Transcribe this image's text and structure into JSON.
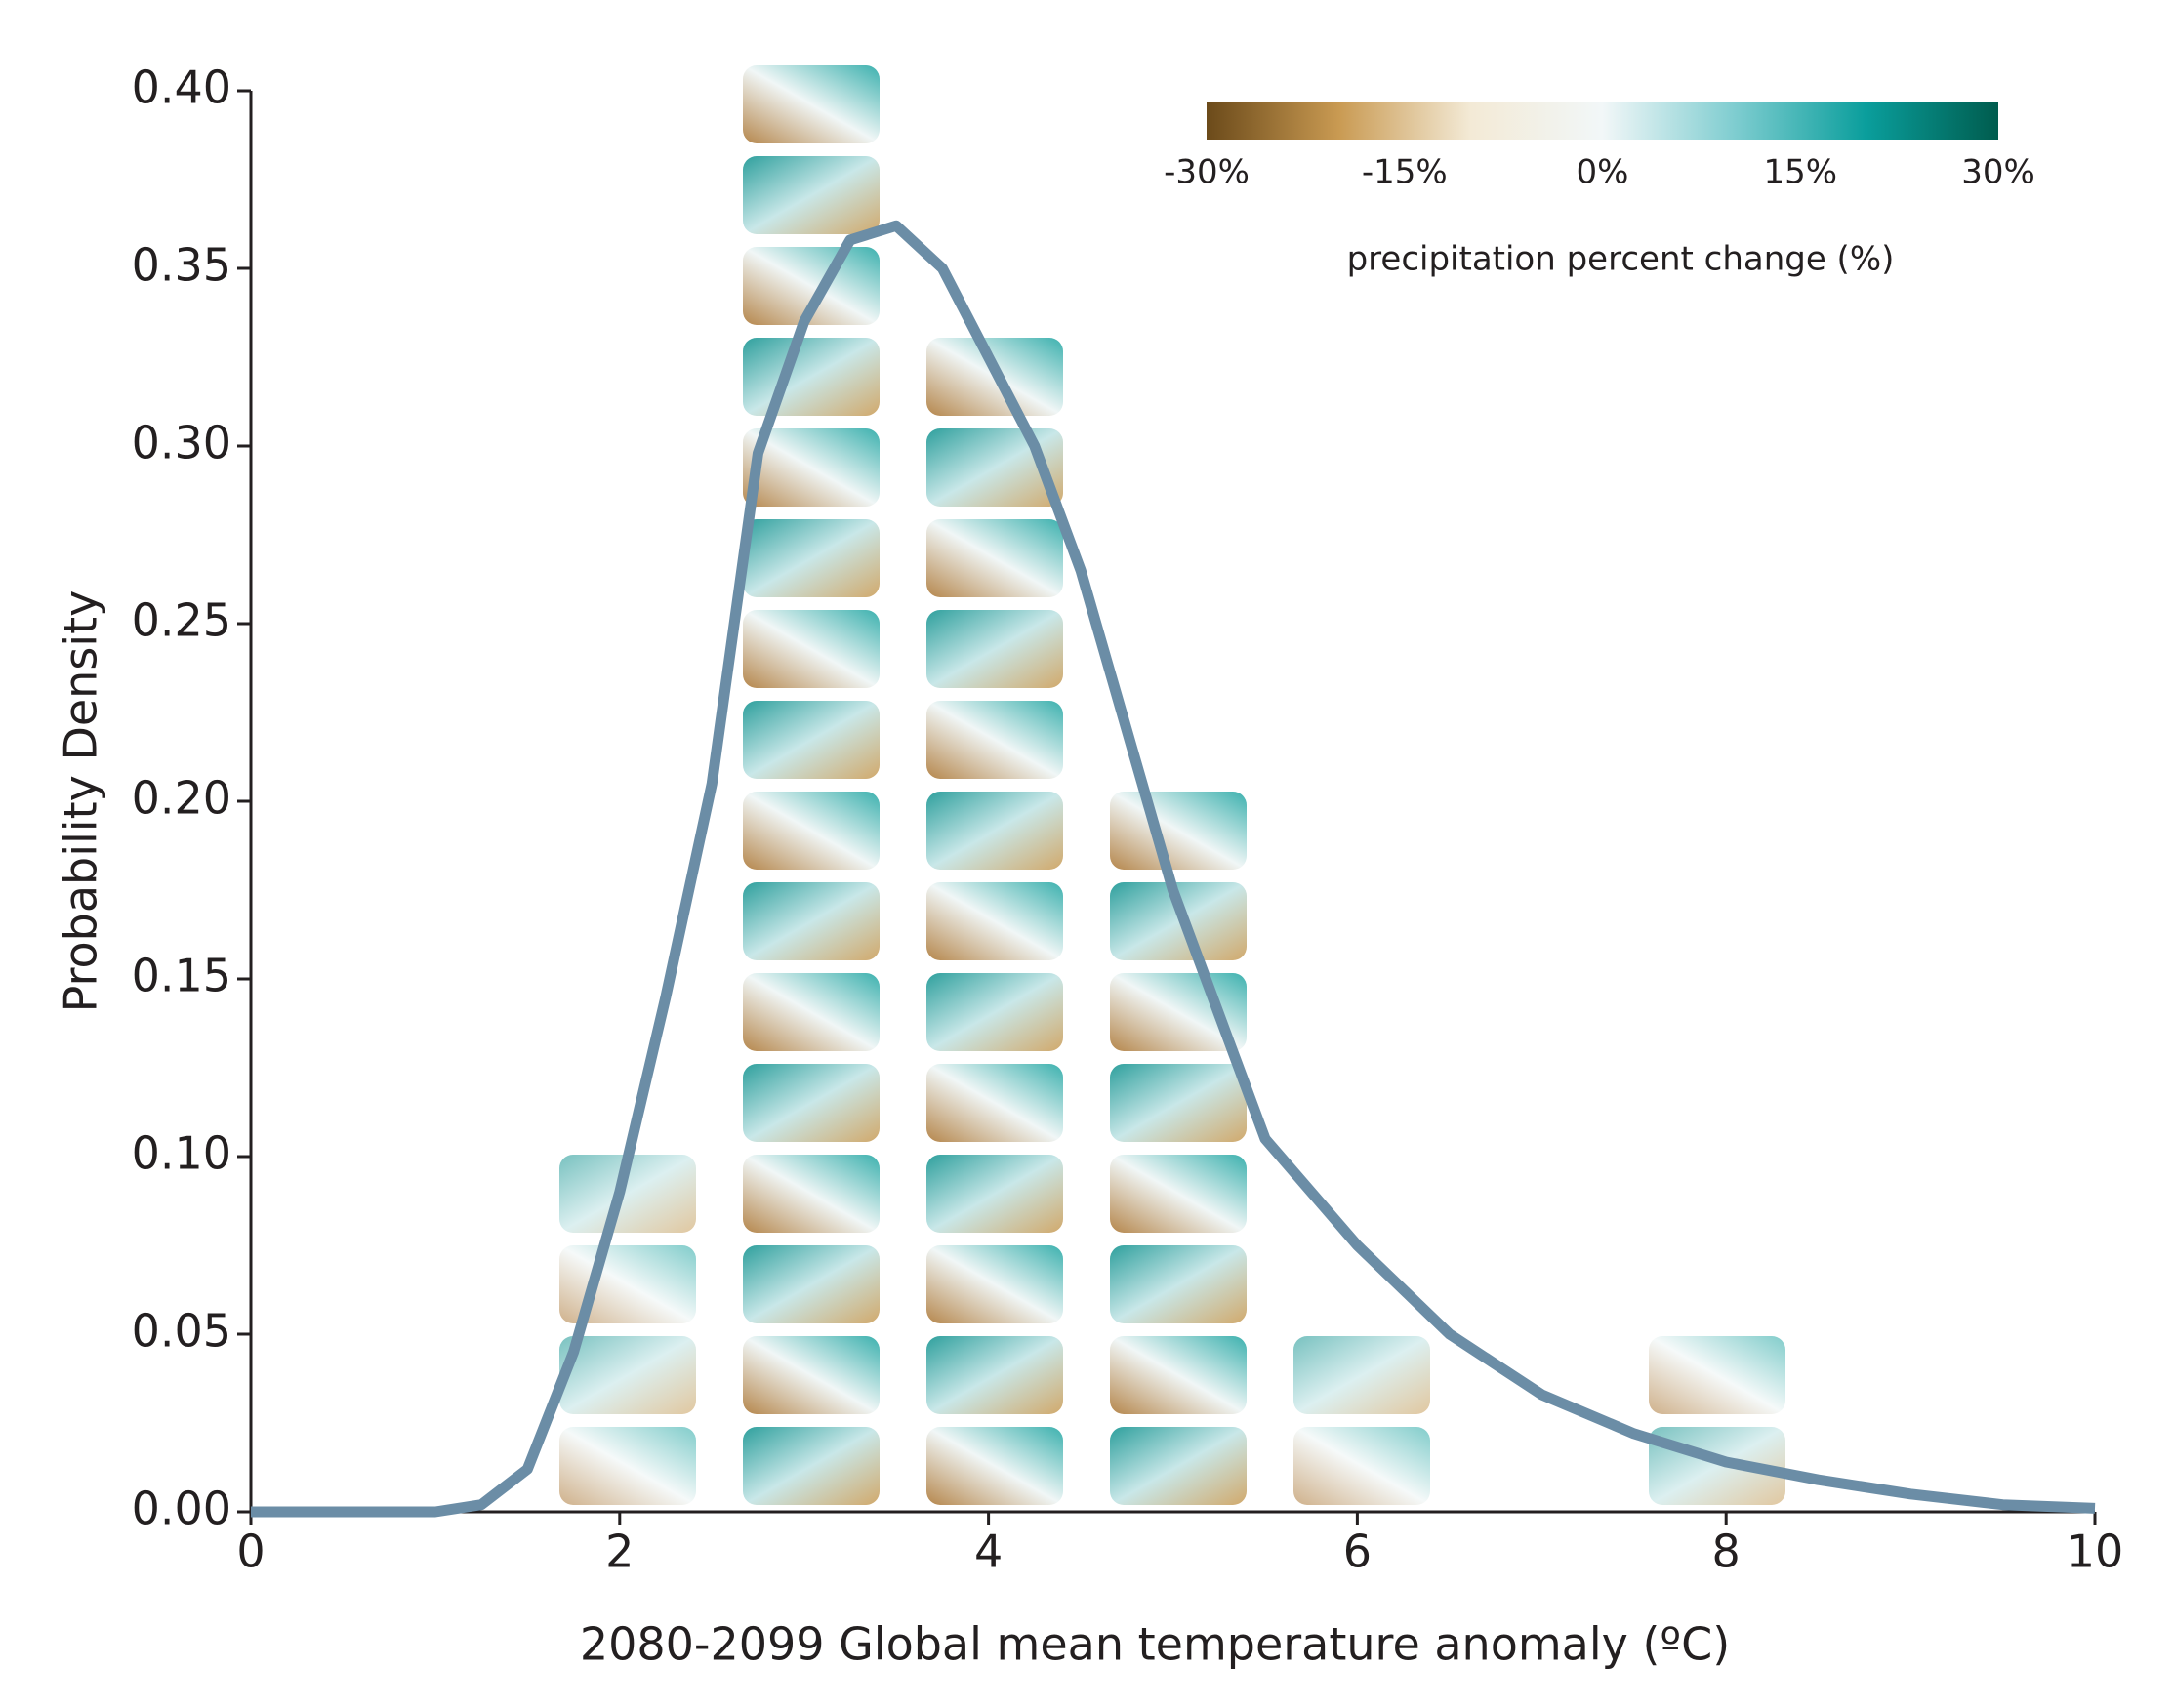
{
  "chart_data": {
    "type": "line",
    "x_label": "2080-2099 Global mean temperature anomaly (ºC)",
    "y_label": "Probability Density",
    "xlim": [
      0,
      10
    ],
    "ylim": [
      0,
      0.4
    ],
    "xticks": [
      0,
      2,
      4,
      6,
      8,
      10
    ],
    "yticks": [
      {
        "value": 0,
        "label": "0.00"
      },
      {
        "value": 0.05,
        "label": "0.05"
      },
      {
        "value": 0.1,
        "label": "0.10"
      },
      {
        "value": 0.15,
        "label": "0.15"
      },
      {
        "value": 0.2,
        "label": "0.20"
      },
      {
        "value": 0.25,
        "label": "0.25"
      },
      {
        "value": 0.3,
        "label": "0.30"
      },
      {
        "value": 0.35,
        "label": "0.35"
      },
      {
        "value": 0.4,
        "label": "0.40"
      }
    ],
    "series": [
      {
        "color": "#6b8da6",
        "x": [
          0,
          0.5,
          1,
          1.25,
          1.5,
          1.75,
          2,
          2.25,
          2.5,
          2.75,
          3,
          3.25,
          3.5,
          3.75,
          4,
          4.25,
          4.5,
          4.75,
          5,
          5.5,
          6,
          6.5,
          7,
          7.5,
          8,
          8.5,
          9,
          9.5,
          10
        ],
        "values": [
          0,
          0,
          0,
          0.002,
          0.012,
          0.045,
          0.09,
          0.145,
          0.205,
          0.298,
          0.335,
          0.358,
          0.362,
          0.35,
          0.325,
          0.3,
          0.265,
          0.22,
          0.175,
          0.105,
          0.075,
          0.05,
          0.033,
          0.022,
          0.014,
          0.009,
          0.005,
          0.002,
          0.001
        ]
      }
    ],
    "colorbar": {
      "label": "precipitation percent change (%)",
      "lim": [
        -30,
        30
      ],
      "colors": [
        "#6b4a1a",
        "#c99a52",
        "#f3ead6",
        "#f2f7f8",
        "#7fcdd0",
        "#0a9e9c",
        "#005c4e"
      ],
      "ticks": [
        {
          "value": -30,
          "label": "-30%"
        },
        {
          "value": -15,
          "label": "-15%"
        },
        {
          "value": 0,
          "label": "0%"
        },
        {
          "value": 15,
          "label": "15%"
        },
        {
          "value": 30,
          "label": "30%"
        }
      ]
    }
  }
}
